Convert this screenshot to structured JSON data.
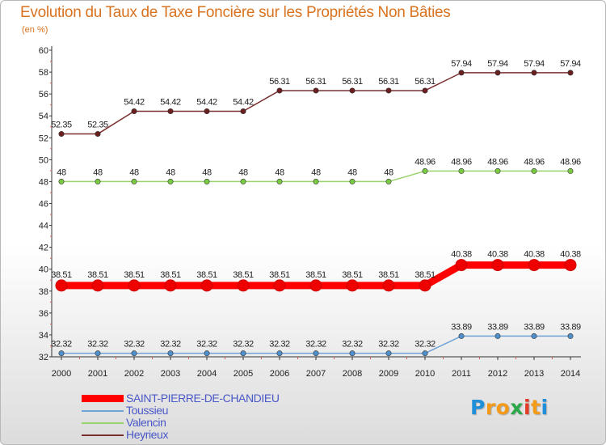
{
  "chart_data": {
    "type": "line",
    "title": "Evolution du Taux de Taxe Foncière sur les Propriétés Non Bâties",
    "ylabel": "(en %)",
    "xlabel": "",
    "x": [
      "2000",
      "2001",
      "2002",
      "2003",
      "2004",
      "2005",
      "2006",
      "2007",
      "2008",
      "2009",
      "2010",
      "2011",
      "2012",
      "2013",
      "2014"
    ],
    "ylim": [
      32,
      60
    ],
    "yticks": [
      32,
      34,
      36,
      38,
      40,
      42,
      44,
      46,
      48,
      50,
      52,
      54,
      56,
      58,
      60
    ],
    "series": [
      {
        "name": "SAINT-PIERRE-DE-CHANDIEU",
        "color": "#ff0000",
        "emphasis": true,
        "values": [
          38.51,
          38.51,
          38.51,
          38.51,
          38.51,
          38.51,
          38.51,
          38.51,
          38.51,
          38.51,
          38.51,
          40.38,
          40.38,
          40.38,
          40.38
        ],
        "labels": [
          "38.51",
          "38.51",
          "38.51",
          "38.51",
          "38.51",
          "38.51",
          "38.51",
          "38.51",
          "38.51",
          "38.51",
          "38.51",
          "40.38",
          "40.38",
          "40.38",
          "40.38"
        ]
      },
      {
        "name": "Toussieu",
        "color": "#6fa3d6",
        "marker": "#4f8fcc",
        "values": [
          32.32,
          32.32,
          32.32,
          32.32,
          32.32,
          32.32,
          32.32,
          32.32,
          32.32,
          32.32,
          32.32,
          33.89,
          33.89,
          33.89,
          33.89
        ],
        "labels": [
          "32.32",
          "32.32",
          "32.32",
          "32.32",
          "32.32",
          "32.32",
          "32.32",
          "32.32",
          "32.32",
          "32.32",
          "32.32",
          "33.89",
          "33.89",
          "33.89",
          "33.89"
        ]
      },
      {
        "name": "Valencin",
        "color": "#99d36b",
        "marker": "#7ac943",
        "values": [
          48,
          48,
          48,
          48,
          48,
          48,
          48,
          48,
          48,
          48,
          48.96,
          48.96,
          48.96,
          48.96,
          48.96
        ],
        "labels": [
          "48",
          "48",
          "48",
          "48",
          "48",
          "48",
          "48",
          "48",
          "48",
          "48",
          "48.96",
          "48.96",
          "48.96",
          "48.96",
          "48.96"
        ]
      },
      {
        "name": "Heyrieux",
        "color": "#7b3030",
        "marker": "#6b1f1f",
        "values": [
          52.35,
          52.35,
          54.42,
          54.42,
          54.42,
          54.42,
          56.31,
          56.31,
          56.31,
          56.31,
          56.31,
          57.94,
          57.94,
          57.94,
          57.94
        ],
        "labels": [
          "52.35",
          "52.35",
          "54.42",
          "54.42",
          "54.42",
          "54.42",
          "56.31",
          "56.31",
          "56.31",
          "56.31",
          "56.31",
          "57.94",
          "57.94",
          "57.94",
          "57.94"
        ]
      }
    ],
    "legend_position": "bottom-left",
    "grid": false
  },
  "brand": {
    "name": "Proxiti",
    "letters": [
      {
        "ch": "P",
        "color": "#1e8fd8"
      },
      {
        "ch": "r",
        "color": "#f39a18"
      },
      {
        "ch": "o",
        "color": "#f39a18"
      },
      {
        "ch": "x",
        "color": "#2aa84a"
      },
      {
        "ch": "i",
        "color": "#e23b26"
      },
      {
        "ch": "t",
        "color": "#f39a18"
      },
      {
        "ch": "i",
        "color": "#1e8fd8"
      }
    ]
  }
}
